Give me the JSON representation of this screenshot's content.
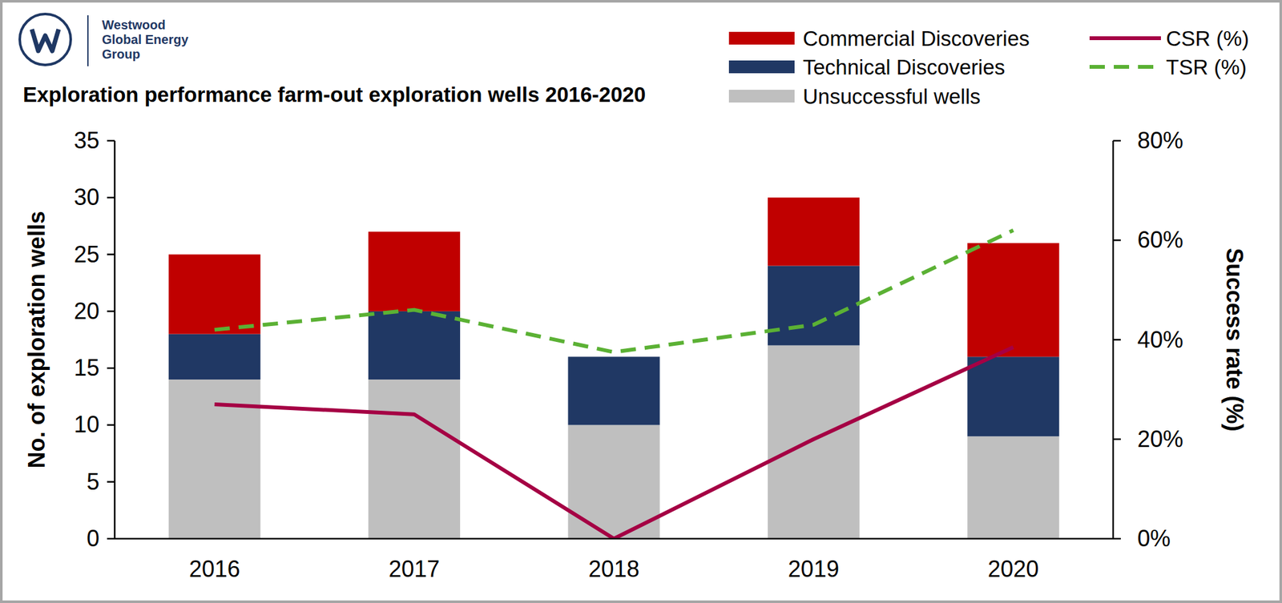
{
  "chart_data": {
    "type": "bar",
    "stacked": true,
    "title": "Exploration performance farm-out exploration wells 2016-2020",
    "logo": [
      "Westwood",
      "Global Energy",
      "Group"
    ],
    "y_label": "No. of exploration wells",
    "y2_label": "Success rate (%)",
    "categories": [
      "2016",
      "2017",
      "2018",
      "2019",
      "2020"
    ],
    "ylim": [
      0,
      35
    ],
    "yticks": [
      0,
      5,
      10,
      15,
      20,
      25,
      30,
      35
    ],
    "y2lim": [
      0,
      80
    ],
    "y2ticks": [
      {
        "value": 0,
        "label": "0%"
      },
      {
        "value": 20,
        "label": "20%"
      },
      {
        "value": 40,
        "label": "40%"
      },
      {
        "value": 60,
        "label": "60%"
      },
      {
        "value": 80,
        "label": "80%"
      }
    ],
    "grid": false,
    "legend": "top-right",
    "series": [
      {
        "name": "Unsuccessful wells",
        "type": "bar",
        "color": "#bfbfbf",
        "values": [
          14,
          14,
          10,
          17,
          9
        ]
      },
      {
        "name": "Technical Discoveries",
        "type": "bar",
        "color": "#203864",
        "values": [
          4,
          6,
          6,
          7,
          7
        ]
      },
      {
        "name": "Commercial Discoveries",
        "type": "bar",
        "color": "#c00000",
        "values": [
          7,
          7,
          0,
          6,
          10
        ]
      },
      {
        "name": "CSR (%)",
        "type": "line",
        "axis": "y2",
        "color": "#a50044",
        "line_style": "solid",
        "values": [
          27,
          25,
          0,
          20,
          38.5
        ]
      },
      {
        "name": "TSR (%)",
        "type": "line",
        "axis": "y2",
        "color": "#5bb134",
        "line_style": "dashed",
        "values": [
          42,
          46,
          37.5,
          43,
          62
        ]
      }
    ]
  }
}
